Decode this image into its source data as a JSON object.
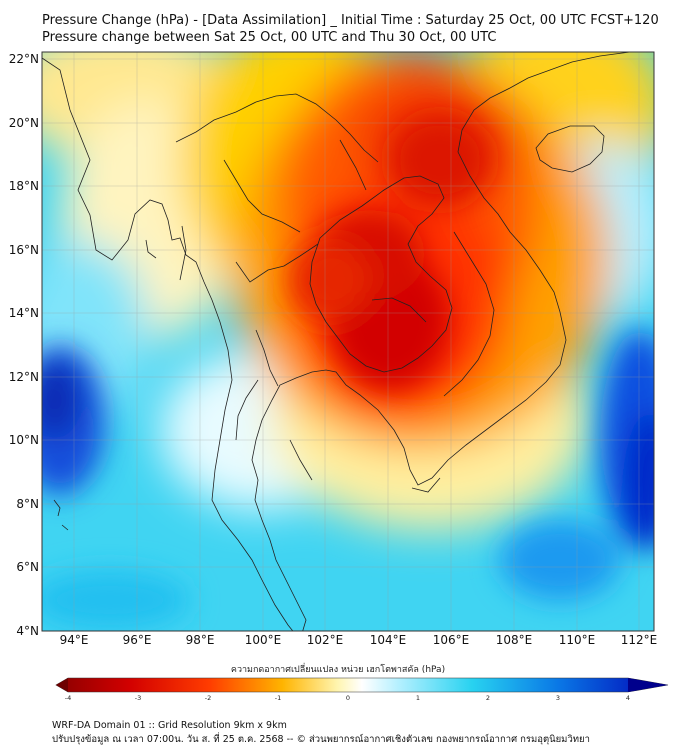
{
  "title": {
    "line1": "Pressure Change (hPa) - [Data Assimilation] _ Initial Time : Saturday 25 Oct, 00 UTC FCST+120",
    "line2": "Pressure change between Sat 25 Oct, 00 UTC and Thu 30 Oct, 00 UTC"
  },
  "map": {
    "lat_labels": [
      "22°N",
      "20°N",
      "18°N",
      "16°N",
      "14°N",
      "12°N",
      "10°N",
      "8°N",
      "6°N",
      "4°N"
    ],
    "lon_labels": [
      "94°E",
      "96°E",
      "98°E",
      "100°E",
      "102°E",
      "104°E",
      "106°E",
      "108°E",
      "110°E",
      "112°E"
    ],
    "lat_range": [
      4,
      22
    ],
    "lon_range": [
      93,
      112.5
    ],
    "field_colors": {
      "strong_fall": "#c80000",
      "fall": "#f03c00",
      "weak_fall": "#ffc800",
      "neutral": "#ffffff",
      "rise": "#00d2f0",
      "strong_rise": "#0028dc"
    }
  },
  "colorbar": {
    "label": "ความกดอากาศเปลี่ยนแปลง หน่วย เฮกโตพาสคัล (hPa)",
    "ticks": [
      "-4",
      "-3",
      "-2",
      "-1",
      "0",
      "1",
      "2",
      "3",
      "4"
    ],
    "min": -4,
    "max": 4
  },
  "footer": {
    "line1": "WRF-DA Domain 01 :: Grid Resolution 9km x 9km",
    "line2": "ปรับปรุงข้อมูล ณ เวลา 07:00น. วัน ส. ที่ 25 ต.ค. 2568 -- © ส่วนพยากรณ์อากาศเชิงตัวเลข กองพยากรณ์อากาศ กรมอุตุนิยมวิทยา"
  }
}
